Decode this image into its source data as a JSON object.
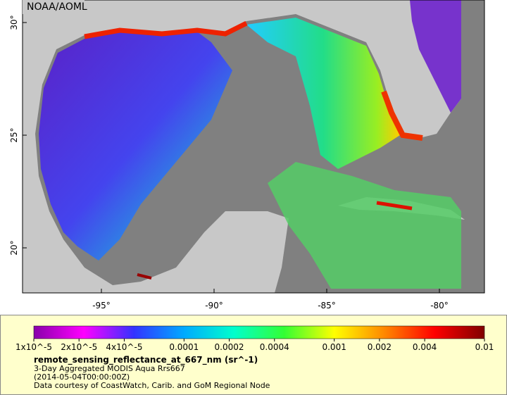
{
  "map": {
    "watermark": "NOAA/AOML",
    "xlim": [
      -98.5,
      -78
    ],
    "ylim": [
      18,
      31
    ],
    "xticks": [
      {
        "value": -95,
        "label": "-95°"
      },
      {
        "value": -90,
        "label": "-90°"
      },
      {
        "value": -85,
        "label": "-85°"
      },
      {
        "value": -80,
        "label": "-80°"
      }
    ],
    "yticks": [
      {
        "value": 20,
        "label": "20°"
      },
      {
        "value": 25,
        "label": "25°"
      },
      {
        "value": 30,
        "label": "30°"
      }
    ]
  },
  "colorbar": {
    "log": true,
    "lim": [
      1e-05,
      0.01
    ],
    "colors": [
      "#8800aa",
      "#ff00ff",
      "#3333ff",
      "#00aaff",
      "#00ffcc",
      "#33ff33",
      "#ffff00",
      "#ff8800",
      "#ff0000",
      "#800000"
    ],
    "ticks": [
      {
        "value": 1e-05,
        "label": "1x10^-5"
      },
      {
        "value": 2e-05,
        "label": "2x10^-5"
      },
      {
        "value": 4e-05,
        "label": "4x10^-5"
      },
      0.0001,
      0.0002,
      0.0004,
      0.001,
      0.002,
      0.004,
      0.01
    ]
  },
  "caption": {
    "variable": "remote_sensing_reflectance_at_667_nm (sr^-1)",
    "description": "3-Day Aggregated MODIS Aqua Rrs667",
    "time": "(2014-05-04T00:00:00Z)",
    "credit": "Data courtesy of CoastWatch, Carib. and GoM Regional Node"
  }
}
